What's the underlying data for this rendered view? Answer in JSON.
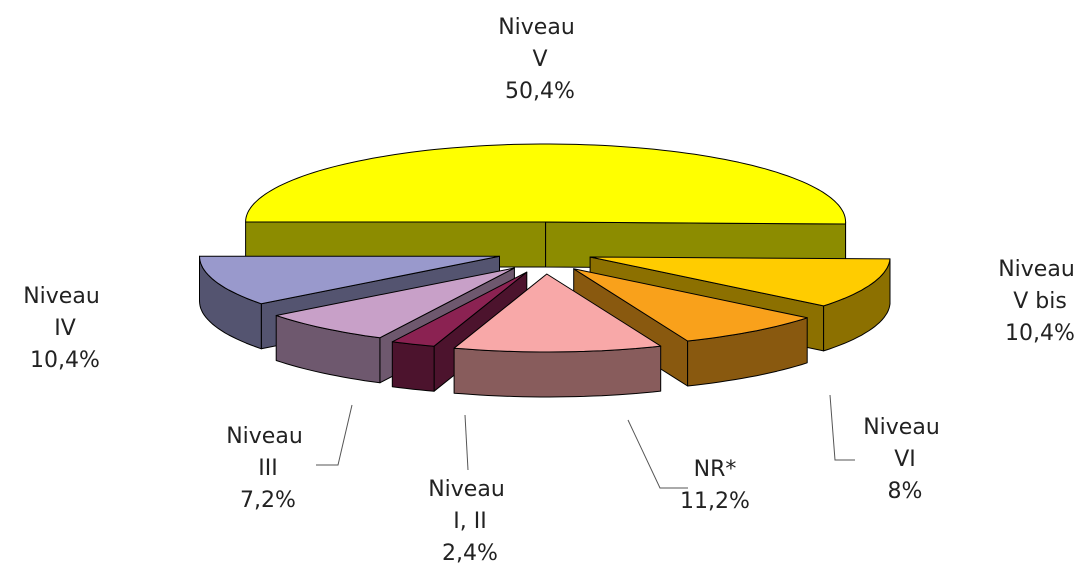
{
  "chart_data": {
    "type": "pie3d",
    "categories": [
      "Niveau V",
      "Niveau V bis",
      "Niveau VI",
      "NR*",
      "Niveau I, II",
      "Niveau III",
      "Niveau IV"
    ],
    "values": [
      50.4,
      10.4,
      8,
      11.2,
      2.4,
      7.2,
      10.4
    ],
    "value_labels": [
      "50,4%",
      "10,4%",
      "8%",
      "11,2%",
      "2,4%",
      "7,2%",
      "10,4%"
    ],
    "colors": [
      "#ffff00",
      "#ffcc00",
      "#f9a11b",
      "#f8a8a8",
      "#8b2252",
      "#c8a0c8",
      "#9999cc"
    ]
  }
}
